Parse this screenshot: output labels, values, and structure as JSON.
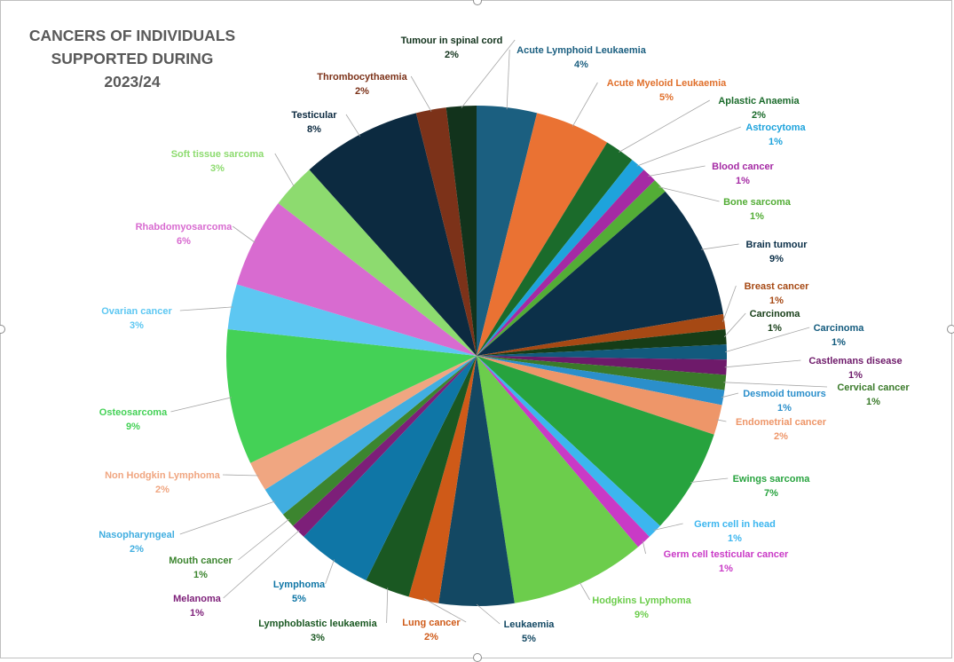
{
  "chart_data": {
    "type": "pie",
    "title_lines": [
      "CANCERS OF INDIVIDUALS",
      "SUPPORTED DURING 2023/24"
    ],
    "slices": [
      {
        "label": "Acute Lymphoid Leukaemia",
        "value": 4,
        "pct": "4%",
        "color": "#1b5f80",
        "label_color": "#1b5f80"
      },
      {
        "label": "Acute Myeloid Leukaemia",
        "value": 5,
        "pct": "5%",
        "color": "#ea7233",
        "label_color": "#e0702c"
      },
      {
        "label": "Aplastic Anaemia",
        "value": 2,
        "pct": "2%",
        "color": "#1b6b2b",
        "label_color": "#1b6b2b"
      },
      {
        "label": "Astrocytoma",
        "value": 1,
        "pct": "1%",
        "color": "#1ea3dc",
        "label_color": "#1ea3dc"
      },
      {
        "label": "Blood cancer",
        "value": 1,
        "pct": "1%",
        "color": "#a52aa4",
        "label_color": "#a52aa4"
      },
      {
        "label": "Bone sarcoma",
        "value": 1,
        "pct": "1%",
        "color": "#53ad36",
        "label_color": "#53ad36"
      },
      {
        "label": "Brain tumour",
        "value": 9,
        "pct": "9%",
        "color": "#0c3049",
        "label_color": "#0c3049"
      },
      {
        "label": "Breast cancer",
        "value": 1,
        "pct": "1%",
        "color": "#a64914",
        "label_color": "#a64914"
      },
      {
        "label": "Carcinoma",
        "value": 1,
        "pct": "1%",
        "color": "#163d17",
        "label_color": "#163d17"
      },
      {
        "label": "Carcinoma",
        "value": 1,
        "pct": "1%",
        "color": "#125a7d",
        "label_color": "#125a7d"
      },
      {
        "label": "Castlemans disease",
        "value": 1,
        "pct": "1%",
        "color": "#6e1a6a",
        "label_color": "#6e1a6a"
      },
      {
        "label": "Cervical cancer",
        "value": 1,
        "pct": "1%",
        "color": "#3a7a2a",
        "label_color": "#3a7a2a"
      },
      {
        "label": "Desmoid tumours",
        "value": 1,
        "pct": "1%",
        "color": "#2b8fcb",
        "label_color": "#2b8fcb"
      },
      {
        "label": "Endometrial cancer",
        "value": 2,
        "pct": "2%",
        "color": "#ee9669",
        "label_color": "#ee9669"
      },
      {
        "label": "Ewings sarcoma",
        "value": 7,
        "pct": "7%",
        "color": "#27a33e",
        "label_color": "#27a33e"
      },
      {
        "label": "Germ cell in head",
        "value": 1,
        "pct": "1%",
        "color": "#3cb6ef",
        "label_color": "#3cb6ef"
      },
      {
        "label": "Germ cell testicular cancer",
        "value": 1,
        "pct": "1%",
        "color": "#c93ac6",
        "label_color": "#c93ac6"
      },
      {
        "label": "Hodgkins Lymphoma",
        "value": 9,
        "pct": "9%",
        "color": "#6ccd4c",
        "label_color": "#6ccd4c"
      },
      {
        "label": "Leukaemia",
        "value": 5,
        "pct": "5%",
        "color": "#134863",
        "label_color": "#134863"
      },
      {
        "label": "Lung cancer",
        "value": 2,
        "pct": "2%",
        "color": "#cf5a18",
        "label_color": "#cf5a18"
      },
      {
        "label": "Lymphoblastic leukaemia",
        "value": 3,
        "pct": "3%",
        "color": "#1a5822",
        "label_color": "#1a5822"
      },
      {
        "label": "Lymphoma",
        "value": 5,
        "pct": "5%",
        "color": "#0f76a6",
        "label_color": "#0f76a6"
      },
      {
        "label": "Melanoma",
        "value": 1,
        "pct": "1%",
        "color": "#7d1f79",
        "label_color": "#7d1f79"
      },
      {
        "label": "Mouth cancer",
        "value": 1,
        "pct": "1%",
        "color": "#3c852f",
        "label_color": "#3c852f"
      },
      {
        "label": "Nasopharyngeal",
        "value": 2,
        "pct": "2%",
        "color": "#41aee0",
        "label_color": "#41aee0"
      },
      {
        "label": "Non Hodgkin Lymphoma",
        "value": 2,
        "pct": "2%",
        "color": "#f0a681",
        "label_color": "#f0a681"
      },
      {
        "label": "Osteosarcoma",
        "value": 9,
        "pct": "9%",
        "color": "#44d156",
        "label_color": "#44d156"
      },
      {
        "label": "Ovarian cancer",
        "value": 3,
        "pct": "3%",
        "color": "#5dc7f2",
        "label_color": "#5dc7f2"
      },
      {
        "label": "Rhabdomyosarcoma",
        "value": 6,
        "pct": "6%",
        "color": "#d86bd0",
        "label_color": "#d86bd0"
      },
      {
        "label": "Soft tissue sarcoma",
        "value": 3,
        "pct": "3%",
        "color": "#8ddb6f",
        "label_color": "#8ddb6f"
      },
      {
        "label": "Testicular",
        "value": 8,
        "pct": "8%",
        "color": "#0c2a40",
        "label_color": "#0c2a40"
      },
      {
        "label": "Thrombocythaemia",
        "value": 2,
        "pct": "2%",
        "color": "#7c3219",
        "label_color": "#7c3219"
      },
      {
        "label": "Tumour in spinal cord",
        "value": 2,
        "pct": "2%",
        "color": "#12331c",
        "label_color": "#12331c"
      }
    ],
    "legend": "none",
    "data_labels": "outside-with-leader-lines"
  }
}
